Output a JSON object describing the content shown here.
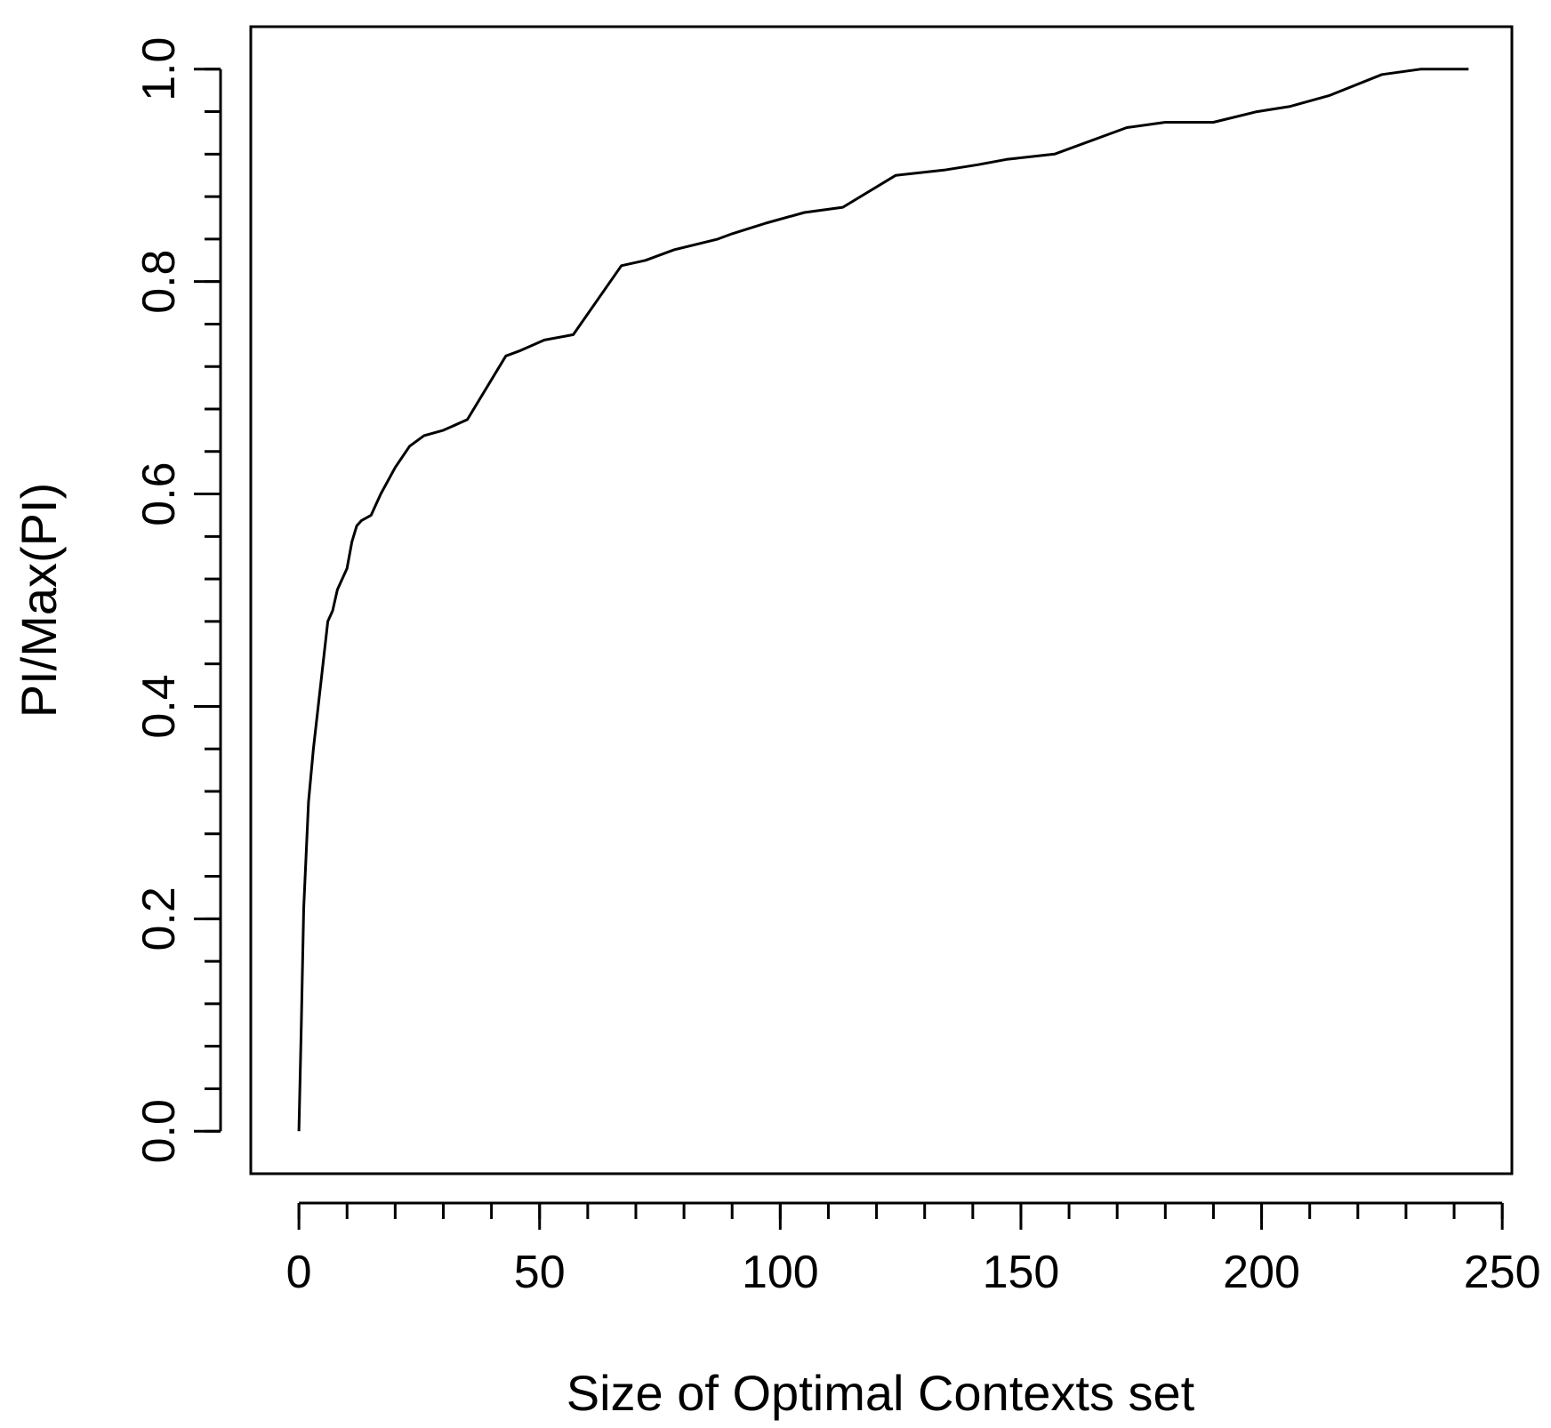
{
  "chart_data": {
    "type": "line",
    "title": "",
    "xlabel": "Size of Optimal Contexts set",
    "ylabel": "PI/Max(PI)",
    "xlim": [
      -10,
      252
    ],
    "ylim": [
      -0.04,
      1.04
    ],
    "xticks": [
      0,
      50,
      100,
      150,
      200,
      250
    ],
    "xtick_labels": [
      "0",
      "50",
      "100",
      "150",
      "200",
      "250"
    ],
    "yticks": [
      0.0,
      0.2,
      0.4,
      0.6,
      0.8,
      1.0
    ],
    "ytick_labels": [
      "0.0",
      "0.2",
      "0.4",
      "0.6",
      "0.8",
      "1.0"
    ],
    "x_minor_step": 10,
    "y_minor_step": 0.04,
    "grid": false,
    "legend": "none",
    "line_color": "#000000",
    "series": [
      {
        "x": [
          0,
          0.5,
          1,
          2,
          3,
          4,
          5,
          6,
          7,
          8,
          10,
          11,
          12,
          13,
          15,
          17,
          20,
          23,
          26,
          30,
          35,
          43,
          46,
          51,
          57,
          67,
          72,
          78,
          87,
          90,
          97,
          105,
          113,
          124,
          134,
          141,
          147,
          157,
          172,
          180,
          190,
          199,
          206,
          214,
          225,
          233,
          243
        ],
        "y": [
          0.0,
          0.1,
          0.21,
          0.31,
          0.36,
          0.4,
          0.44,
          0.48,
          0.49,
          0.51,
          0.53,
          0.555,
          0.57,
          0.575,
          0.58,
          0.6,
          0.625,
          0.645,
          0.655,
          0.66,
          0.67,
          0.73,
          0.735,
          0.745,
          0.75,
          0.815,
          0.82,
          0.83,
          0.84,
          0.845,
          0.855,
          0.865,
          0.87,
          0.9,
          0.905,
          0.91,
          0.915,
          0.92,
          0.945,
          0.95,
          0.95,
          0.96,
          0.965,
          0.975,
          0.995,
          1.0,
          1.0
        ]
      }
    ]
  }
}
